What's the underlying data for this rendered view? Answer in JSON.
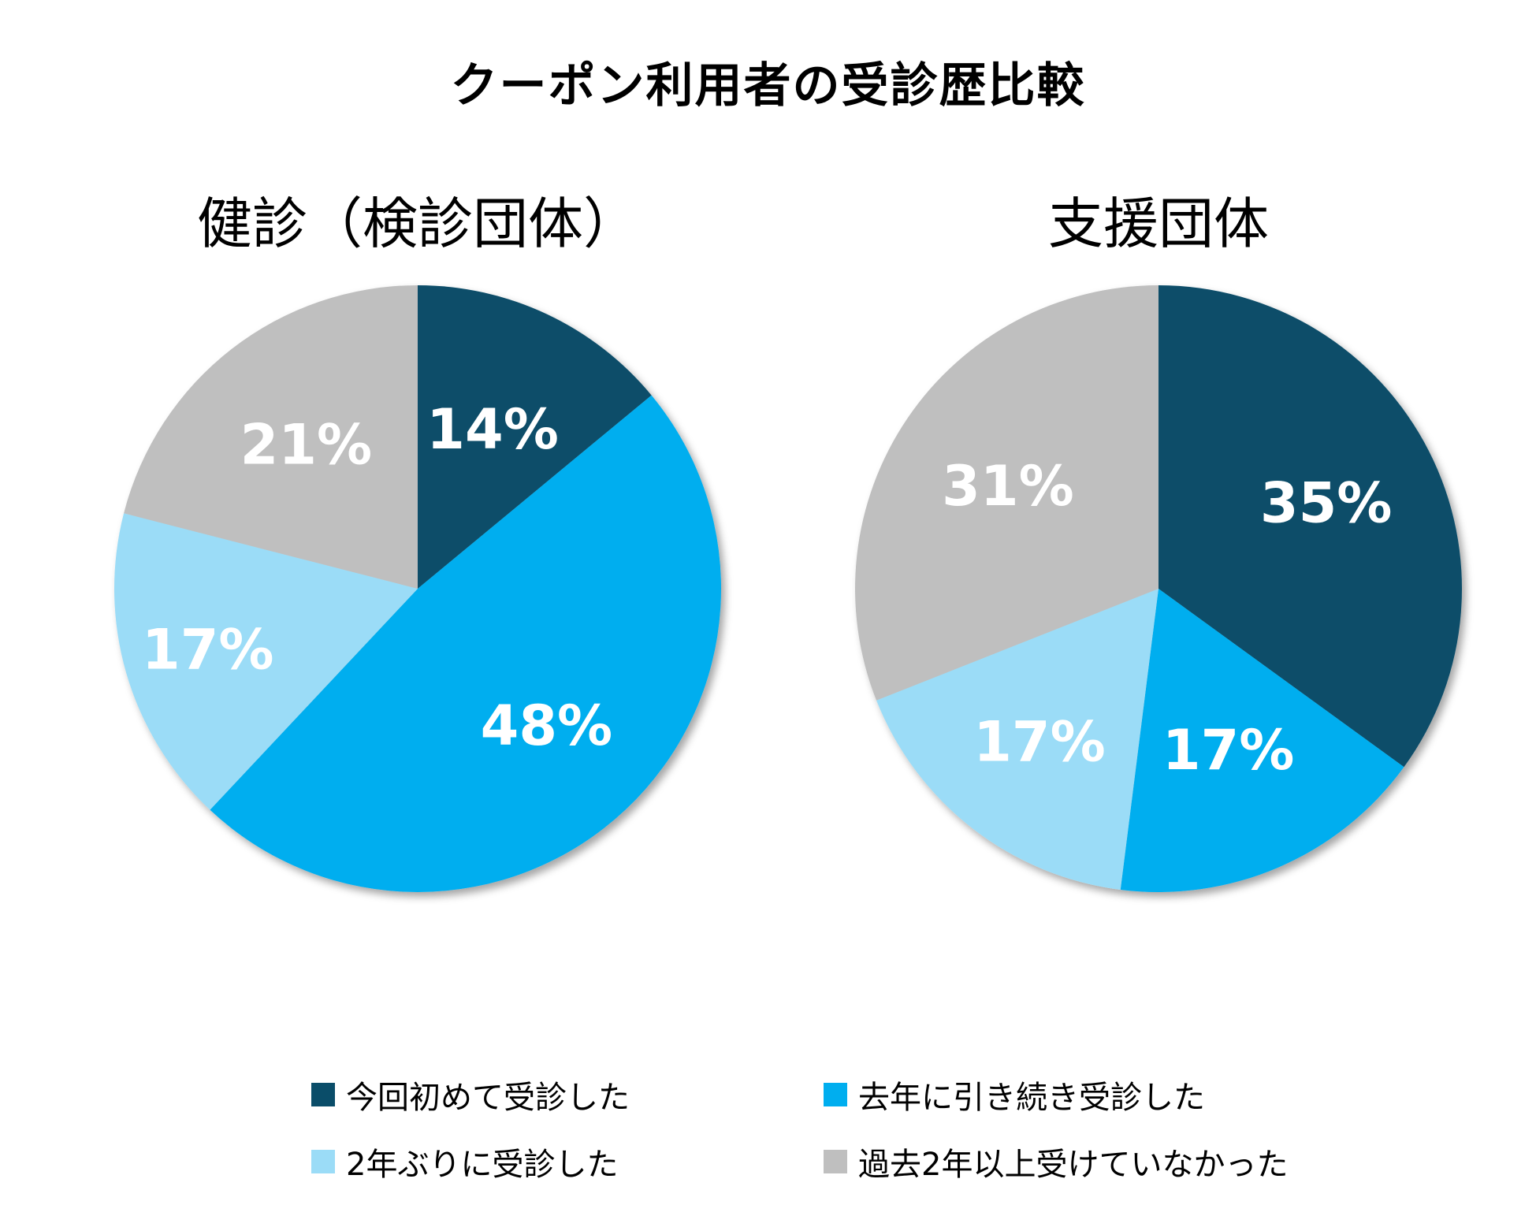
{
  "title": "クーポン利用者の受診歴比較",
  "colors": {
    "first_time": "#0a4d69",
    "continued": "#00aeef",
    "after_two_years": "#9bdcf7",
    "not_for_2plus_years": "#bfbfbf"
  },
  "legend": [
    {
      "label": "今回初めて受診した",
      "color": "#0a4d69"
    },
    {
      "label": "去年に引き続き受診した",
      "color": "#00aeef"
    },
    {
      "label": "2年ぶりに受診した",
      "color": "#9bdcf7"
    },
    {
      "label": "過去2年以上受けていなかった",
      "color": "#bfbfbf"
    }
  ],
  "chart_data": [
    {
      "type": "pie",
      "title": "健診（検診団体）",
      "categories": [
        "今回初めて受診した",
        "去年に引き続き受診した",
        "2年ぶりに受診した",
        "過去2年以上受けていなかった"
      ],
      "values": [
        14,
        48,
        17,
        21
      ],
      "labels": [
        "14%",
        "48%",
        "17%",
        "21%"
      ],
      "colors": [
        "#0a4d69",
        "#00aeef",
        "#9bdcf7",
        "#bfbfbf"
      ],
      "start": "12 o'clock",
      "direction": "clockwise"
    },
    {
      "type": "pie",
      "title": "支援団体",
      "categories": [
        "今回初めて受診した",
        "去年に引き続き受診した",
        "2年ぶりに受診した",
        "過去2年以上受けていなかった"
      ],
      "values": [
        35,
        17,
        17,
        31
      ],
      "labels": [
        "35%",
        "17%",
        "17%",
        "31%"
      ],
      "colors": [
        "#0a4d69",
        "#00aeef",
        "#9bdcf7",
        "#bfbfbf"
      ],
      "start": "12 o'clock",
      "direction": "clockwise"
    }
  ]
}
